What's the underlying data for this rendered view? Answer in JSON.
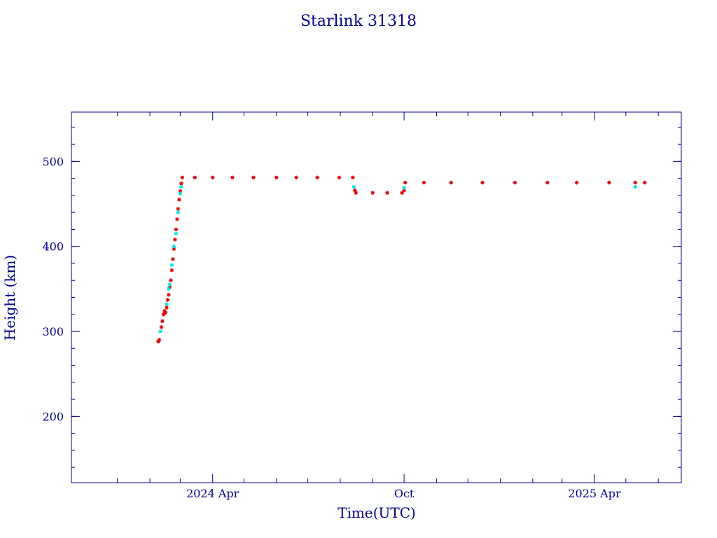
{
  "chart_data": {
    "type": "scatter",
    "title": "Starlink 31318",
    "xlabel": "Time(UTC)",
    "ylabel": "Height (km)",
    "xlim": [
      "2023-11-18",
      "2025-06-23"
    ],
    "ylim": [
      122,
      558
    ],
    "y_major_ticks": [
      200,
      300,
      400,
      500
    ],
    "y_minor_step": 20,
    "x_major_ticks": [
      {
        "date": "2024-04-01",
        "label": "2024 Apr"
      },
      {
        "date": "2024-10-01",
        "label": "Oct"
      },
      {
        "date": "2025-04-01",
        "label": "2025 Apr"
      }
    ],
    "x_minor_ticks": [
      "2024-01-01",
      "2024-02-01",
      "2024-03-01",
      "2024-05-01",
      "2024-06-01",
      "2024-07-01",
      "2024-08-01",
      "2024-09-01",
      "2024-11-01",
      "2024-12-01",
      "2025-01-01",
      "2025-02-01",
      "2025-03-01",
      "2025-05-01",
      "2025-06-01"
    ],
    "grid": false,
    "legend": "none",
    "colors": {
      "axis": "#00008b",
      "primary": "#e00000",
      "secondary": "#00e5e5"
    },
    "series": [
      {
        "color": "#e00000",
        "marker": "asterisk",
        "points": [
          [
            "2024-02-09",
            288
          ],
          [
            "2024-02-10",
            290
          ],
          [
            "2024-02-12",
            305
          ],
          [
            "2024-02-13",
            312
          ],
          [
            "2024-02-14",
            320
          ],
          [
            "2024-02-15",
            324
          ],
          [
            "2024-02-16",
            322
          ],
          [
            "2024-02-17",
            328
          ],
          [
            "2024-02-18",
            337
          ],
          [
            "2024-02-19",
            343
          ],
          [
            "2024-02-20",
            352
          ],
          [
            "2024-02-21",
            360
          ],
          [
            "2024-02-22",
            372
          ],
          [
            "2024-02-23",
            385
          ],
          [
            "2024-02-24",
            397
          ],
          [
            "2024-02-25",
            408
          ],
          [
            "2024-02-26",
            420
          ],
          [
            "2024-02-27",
            432
          ],
          [
            "2024-02-28",
            444
          ],
          [
            "2024-02-29",
            455
          ],
          [
            "2024-03-01",
            465
          ],
          [
            "2024-03-02",
            474
          ],
          [
            "2024-03-03",
            481
          ],
          [
            "2024-03-15",
            481
          ],
          [
            "2024-04-01",
            481
          ],
          [
            "2024-04-20",
            481
          ],
          [
            "2024-05-10",
            481
          ],
          [
            "2024-06-01",
            481
          ],
          [
            "2024-06-20",
            481
          ],
          [
            "2024-07-10",
            481
          ],
          [
            "2024-07-31",
            481
          ],
          [
            "2024-08-13",
            481
          ],
          [
            "2024-08-15",
            466
          ],
          [
            "2024-08-16",
            463
          ],
          [
            "2024-09-01",
            463
          ],
          [
            "2024-09-15",
            463
          ],
          [
            "2024-09-29",
            463
          ],
          [
            "2024-10-01",
            466
          ],
          [
            "2024-10-02",
            475
          ],
          [
            "2024-10-20",
            475
          ],
          [
            "2024-11-15",
            475
          ],
          [
            "2024-12-15",
            475
          ],
          [
            "2025-01-15",
            475
          ],
          [
            "2025-02-15",
            475
          ],
          [
            "2025-03-15",
            475
          ],
          [
            "2025-04-15",
            475
          ],
          [
            "2025-05-10",
            475
          ],
          [
            "2025-05-19",
            475
          ]
        ]
      },
      {
        "color": "#00e5e5",
        "marker": "asterisk",
        "points": [
          [
            "2024-02-11",
            300
          ],
          [
            "2024-02-17",
            332
          ],
          [
            "2024-02-19",
            350
          ],
          [
            "2024-02-20",
            355
          ],
          [
            "2024-02-22",
            378
          ],
          [
            "2024-02-24",
            400
          ],
          [
            "2024-02-26",
            415
          ],
          [
            "2024-02-28",
            440
          ],
          [
            "2024-03-01",
            462
          ],
          [
            "2024-03-02",
            470
          ],
          [
            "2024-08-14",
            470
          ],
          [
            "2024-10-01",
            469
          ],
          [
            "2025-05-10",
            470
          ]
        ]
      }
    ]
  }
}
